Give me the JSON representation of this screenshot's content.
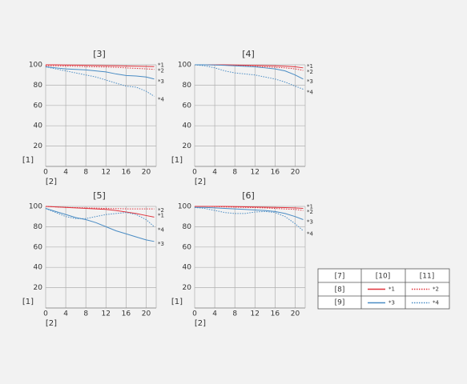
{
  "chart_data": [
    {
      "type": "line",
      "title": "[3]",
      "y_label": "[1]",
      "x_label": "[2]",
      "x": [
        0,
        2,
        4,
        6,
        8,
        10,
        12,
        14,
        16,
        18,
        20,
        21.6
      ],
      "xlim": [
        0,
        22
      ],
      "ylim": [
        0,
        100
      ],
      "xticks": [
        0,
        4,
        8,
        12,
        16,
        20
      ],
      "yticks": [
        20,
        40,
        60,
        80,
        100
      ],
      "grid": true,
      "series": [
        {
          "name": "*1",
          "color": "#e0323c",
          "line_style": "solid",
          "values": [
            100,
            100,
            99.8,
            99.7,
            99.5,
            99.3,
            99.1,
            99,
            98.8,
            98.6,
            98.4,
            98.2
          ]
        },
        {
          "name": "*2",
          "color": "#e0323c",
          "line_style": "dotted",
          "values": [
            99,
            99,
            98.8,
            98.5,
            98.2,
            98,
            97.8,
            97.5,
            97,
            96.5,
            96,
            95.5
          ]
        },
        {
          "name": "*3",
          "color": "#4a8cc4",
          "line_style": "solid",
          "values": [
            98,
            97,
            96,
            95.5,
            95,
            94,
            93,
            91,
            89.5,
            89,
            88,
            86
          ]
        },
        {
          "name": "*4",
          "color": "#4a8cc4",
          "line_style": "dotted",
          "values": [
            98,
            96,
            94,
            92,
            90,
            88,
            85,
            82,
            79,
            78,
            74,
            69
          ]
        }
      ]
    },
    {
      "type": "line",
      "title": "[4]",
      "y_label": "[1]",
      "x_label": "[2]",
      "x": [
        0,
        2,
        4,
        6,
        8,
        10,
        12,
        14,
        16,
        18,
        20,
        21.6
      ],
      "xlim": [
        0,
        22
      ],
      "ylim": [
        0,
        100
      ],
      "xticks": [
        0,
        4,
        8,
        12,
        16,
        20
      ],
      "yticks": [
        20,
        40,
        60,
        80,
        100
      ],
      "grid": true,
      "series": [
        {
          "name": "*1",
          "color": "#e0323c",
          "line_style": "solid",
          "values": [
            100,
            100,
            100,
            100,
            99.8,
            99.6,
            99.4,
            99.2,
            99,
            98.6,
            98,
            97
          ]
        },
        {
          "name": "*2",
          "color": "#e0323c",
          "line_style": "dotted",
          "values": [
            100,
            100,
            99.8,
            99.6,
            99.3,
            99,
            98.5,
            98,
            97.5,
            97,
            96,
            94.5
          ]
        },
        {
          "name": "*3",
          "color": "#4a8cc4",
          "line_style": "solid",
          "values": [
            100,
            100,
            99.8,
            99.5,
            99,
            98.5,
            98,
            97,
            96,
            94,
            90,
            86
          ]
        },
        {
          "name": "*4",
          "color": "#4a8cc4",
          "line_style": "dotted",
          "values": [
            100,
            99,
            97,
            94,
            92,
            91,
            90,
            88,
            86,
            83,
            79,
            76
          ]
        }
      ]
    },
    {
      "type": "line",
      "title": "[5]",
      "y_label": "[1]",
      "x_label": "[2]",
      "x": [
        0,
        2,
        4,
        6,
        8,
        10,
        12,
        14,
        16,
        18,
        20,
        21.6
      ],
      "xlim": [
        0,
        22
      ],
      "ylim": [
        0,
        100
      ],
      "xticks": [
        0,
        4,
        8,
        12,
        16,
        20
      ],
      "yticks": [
        20,
        40,
        60,
        80,
        100
      ],
      "grid": true,
      "series": [
        {
          "name": "*1",
          "color": "#e0323c",
          "line_style": "solid",
          "values": [
            100,
            99.5,
            99,
            98.5,
            98,
            97.5,
            97,
            96,
            94.5,
            93,
            91,
            89.5
          ]
        },
        {
          "name": "*2",
          "color": "#e0323c",
          "line_style": "dotted",
          "values": [
            100,
            99.5,
            99,
            98.8,
            98.5,
            98.3,
            98,
            97.8,
            97.6,
            97.5,
            97.5,
            97.5
          ]
        },
        {
          "name": "*3",
          "color": "#4a8cc4",
          "line_style": "solid",
          "values": [
            98,
            95,
            92,
            89,
            87,
            84,
            80,
            76,
            73,
            70,
            67,
            65.5
          ]
        },
        {
          "name": "*4",
          "color": "#4a8cc4",
          "line_style": "dotted",
          "values": [
            98,
            94,
            90,
            88,
            88,
            90,
            92,
            93,
            94,
            92,
            87,
            80
          ]
        }
      ]
    },
    {
      "type": "line",
      "title": "[6]",
      "y_label": "[1]",
      "x_label": "[2]",
      "x": [
        0,
        2,
        4,
        6,
        8,
        10,
        12,
        14,
        16,
        18,
        20,
        21.6
      ],
      "xlim": [
        0,
        22
      ],
      "ylim": [
        0,
        100
      ],
      "xticks": [
        0,
        4,
        8,
        12,
        16,
        20
      ],
      "yticks": [
        20,
        40,
        60,
        80,
        100
      ],
      "grid": true,
      "series": [
        {
          "name": "*1",
          "color": "#e0323c",
          "line_style": "solid",
          "values": [
            100,
            100,
            100,
            100,
            99.8,
            99.6,
            99.4,
            99.2,
            99,
            98.8,
            98.5,
            98
          ]
        },
        {
          "name": "*2",
          "color": "#e0323c",
          "line_style": "dotted",
          "values": [
            100,
            100,
            99.8,
            99.5,
            99.3,
            99,
            98.8,
            98.5,
            98,
            97.5,
            97,
            96
          ]
        },
        {
          "name": "*3",
          "color": "#4a8cc4",
          "line_style": "solid",
          "values": [
            99,
            99,
            98.5,
            98,
            97.5,
            97,
            96.5,
            96,
            95,
            93,
            90,
            87
          ]
        },
        {
          "name": "*4",
          "color": "#4a8cc4",
          "line_style": "dotted",
          "values": [
            99,
            98,
            96,
            94,
            93,
            93,
            94.5,
            95,
            94,
            90,
            83,
            76
          ]
        }
      ]
    }
  ],
  "legend_table": {
    "corner": "[7]",
    "columns": [
      "[10]",
      "[11]"
    ],
    "rows": [
      "[8]",
      "[9]"
    ]
  }
}
